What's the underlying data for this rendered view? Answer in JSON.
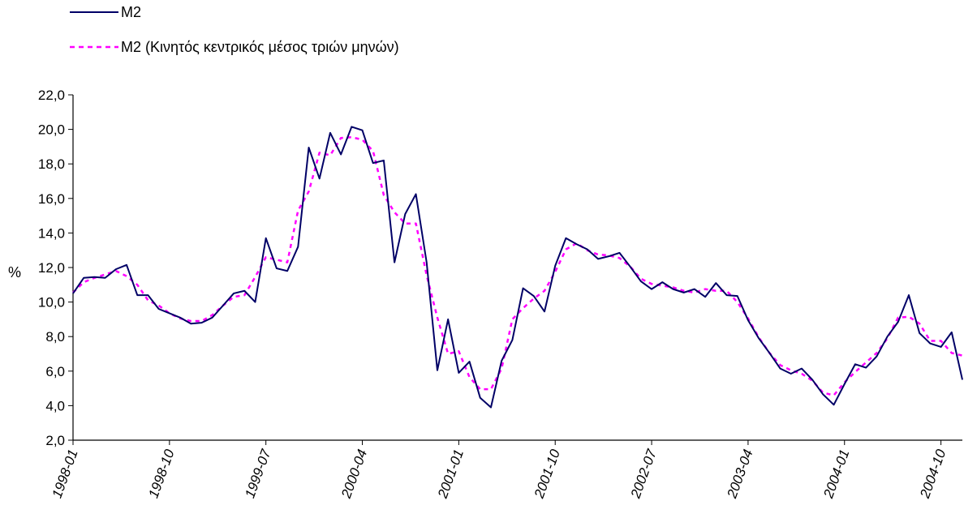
{
  "chart_data": {
    "type": "line",
    "title": "",
    "xlabel": "",
    "ylabel": "%",
    "ylim": [
      2.0,
      22.0
    ],
    "yticks": [
      "2,0",
      "4,0",
      "6,0",
      "8,0",
      "10,0",
      "12,0",
      "14,0",
      "16,0",
      "18,0",
      "20,0",
      "22,0"
    ],
    "xtick_labels": [
      "1998-01",
      "1998-10",
      "1999-07",
      "2000-04",
      "2001-01",
      "2001-10",
      "2002-07",
      "2003-04",
      "2004-01",
      "2004-10"
    ],
    "x_start": "1998-01",
    "x_end": "2004-12",
    "legend_position": "top-left",
    "grid": false,
    "series": [
      {
        "name": "M2",
        "color": "#000066",
        "style": "solid",
        "values": [
          10.5,
          11.4,
          11.45,
          11.4,
          11.9,
          12.15,
          10.4,
          10.4,
          9.6,
          9.35,
          9.1,
          8.75,
          8.8,
          9.1,
          9.8,
          10.5,
          10.65,
          10.0,
          13.7,
          11.95,
          11.8,
          13.2,
          18.95,
          17.15,
          19.8,
          18.55,
          20.15,
          19.95,
          18.05,
          18.2,
          12.3,
          15.1,
          16.25,
          12.3,
          6.05,
          9.0,
          5.9,
          6.55,
          4.45,
          3.9,
          6.6,
          7.8,
          10.8,
          10.35,
          9.45,
          12.1,
          13.7,
          13.35,
          13.05,
          12.5,
          12.65,
          12.85,
          12.05,
          11.2,
          10.75,
          11.15,
          10.75,
          10.55,
          10.75,
          10.3,
          11.1,
          10.4,
          10.35,
          8.95,
          7.9,
          7.05,
          6.15,
          5.85,
          6.15,
          5.5,
          4.65,
          4.05,
          5.25,
          6.4,
          6.2,
          6.85,
          8.0,
          8.85,
          10.4,
          8.2,
          7.6,
          7.4,
          8.25,
          5.5
        ]
      },
      {
        "name": "M2 (Κινητός κεντρικός μέσος τριών μηνών)",
        "color": "#ff00ff",
        "style": "dotted",
        "values": [
          10.55,
          11.15,
          11.4,
          11.6,
          11.8,
          11.5,
          11.0,
          10.1,
          9.8,
          9.35,
          9.05,
          8.9,
          8.9,
          9.25,
          9.8,
          10.3,
          10.4,
          11.45,
          12.6,
          12.45,
          12.3,
          15.3,
          16.4,
          18.65,
          18.5,
          19.5,
          19.55,
          19.4,
          18.75,
          16.2,
          15.2,
          14.55,
          14.55,
          11.55,
          9.1,
          7.0,
          7.15,
          5.65,
          4.95,
          4.95,
          6.15,
          9.0,
          9.65,
          10.2,
          10.65,
          11.75,
          13.05,
          13.4,
          13.0,
          12.75,
          12.7,
          12.55,
          12.05,
          11.35,
          11.05,
          10.95,
          10.85,
          10.65,
          10.55,
          10.75,
          10.65,
          10.65,
          10.0,
          9.05,
          7.95,
          7.05,
          6.35,
          6.05,
          5.85,
          5.45,
          4.75,
          4.6,
          5.35,
          5.95,
          6.5,
          7.05,
          7.9,
          9.1,
          9.15,
          8.75,
          7.75,
          7.75,
          7.05,
          6.9
        ]
      }
    ]
  }
}
